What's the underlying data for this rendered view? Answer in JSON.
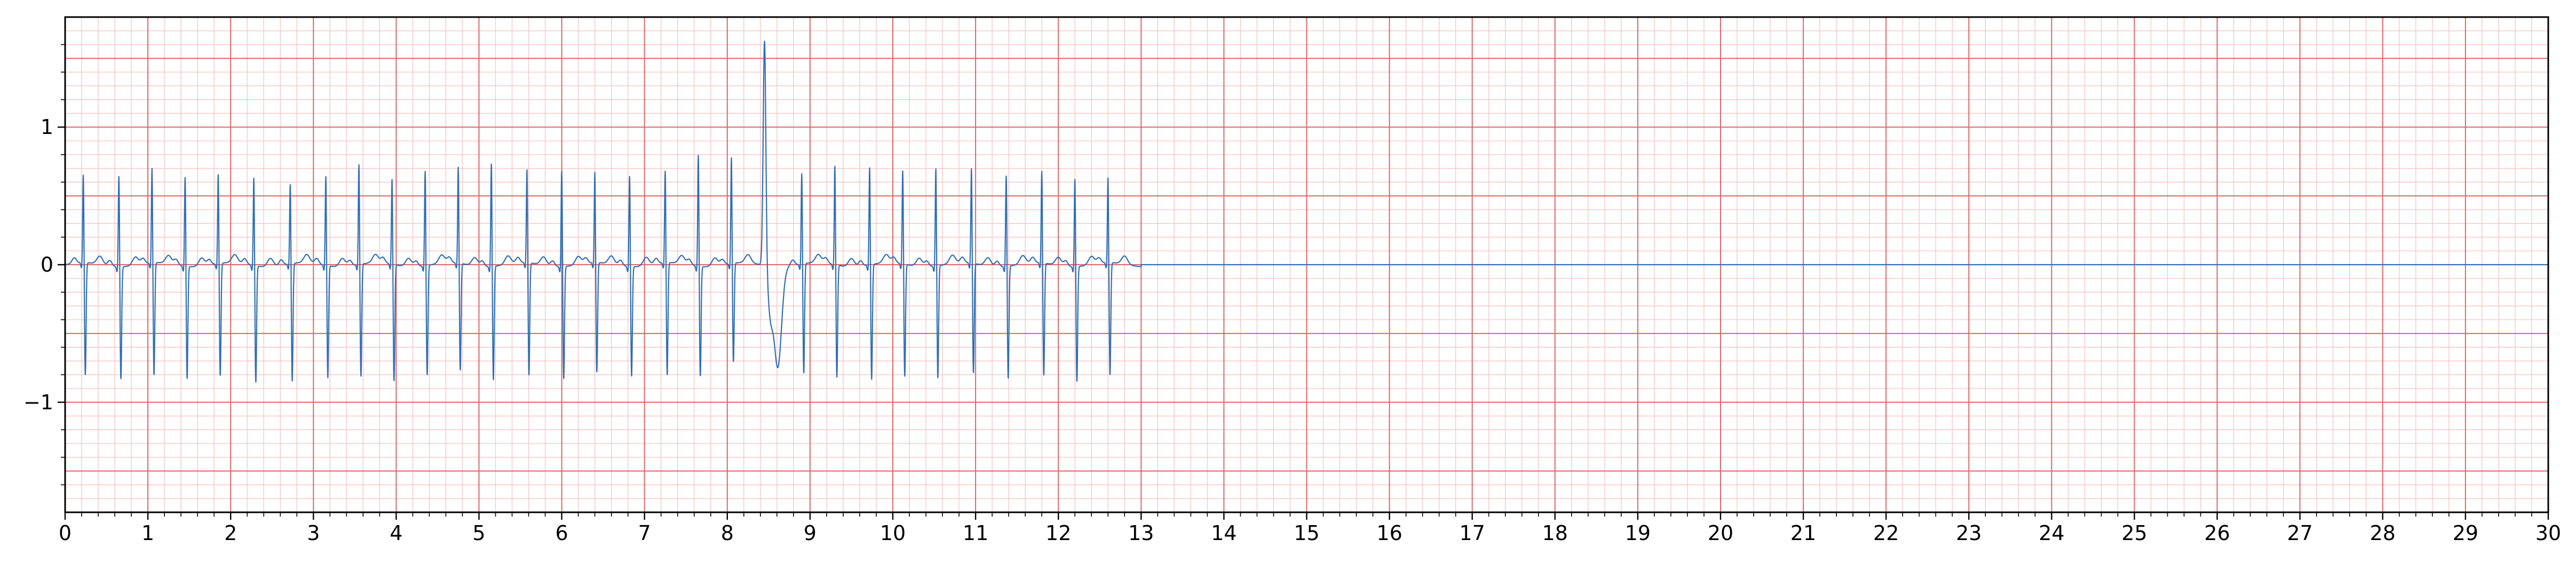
{
  "chart_data": {
    "type": "line",
    "title": "",
    "xlabel": "",
    "ylabel": "",
    "xlim": [
      0,
      30
    ],
    "ylim": [
      -1.8,
      1.8
    ],
    "x_ticks": [
      0,
      1,
      2,
      3,
      4,
      5,
      6,
      7,
      8,
      9,
      10,
      11,
      12,
      13,
      14,
      15,
      16,
      17,
      18,
      19,
      20,
      21,
      22,
      23,
      24,
      25,
      26,
      27,
      28,
      29,
      30
    ],
    "y_ticks": [
      -1,
      0,
      1
    ],
    "y_tick_labels": [
      "−1",
      "0",
      "1"
    ],
    "grid": {
      "major_x_step": 1,
      "minor_x_step": 0.2,
      "major_y_step": 0.5,
      "minor_y_step": 0.1,
      "major_color": "#e06666",
      "minor_color": "#f7c3c3"
    },
    "series": [
      {
        "line_color": "#2f6fb5",
        "signal_end": 13.0,
        "flat_value": 0.0,
        "beats": [
          {
            "t": 0.22,
            "r": 0.66,
            "s": -0.82
          },
          {
            "t": 0.65,
            "r": 0.68,
            "s": -0.82
          },
          {
            "t": 1.05,
            "r": 0.71,
            "s": -0.82
          },
          {
            "t": 1.45,
            "r": 0.67,
            "s": -0.82
          },
          {
            "t": 1.85,
            "r": 0.67,
            "s": -0.82
          },
          {
            "t": 2.28,
            "r": 0.66,
            "s": -0.85
          },
          {
            "t": 2.72,
            "r": 0.6,
            "s": -0.86
          },
          {
            "t": 3.15,
            "r": 0.67,
            "s": -0.82
          },
          {
            "t": 3.55,
            "r": 0.75,
            "s": -0.82
          },
          {
            "t": 3.95,
            "r": 0.64,
            "s": -0.85
          },
          {
            "t": 4.35,
            "r": 0.71,
            "s": -0.8
          },
          {
            "t": 4.75,
            "r": 0.72,
            "s": -0.78
          },
          {
            "t": 5.15,
            "r": 0.77,
            "s": -0.83
          },
          {
            "t": 5.58,
            "r": 0.7,
            "s": -0.82
          },
          {
            "t": 6.0,
            "r": 0.72,
            "s": -0.82
          },
          {
            "t": 6.4,
            "r": 0.68,
            "s": -0.8
          },
          {
            "t": 6.82,
            "r": 0.68,
            "s": -0.8
          },
          {
            "t": 7.25,
            "r": 0.69,
            "s": -0.82
          },
          {
            "t": 7.65,
            "r": 0.83,
            "s": -0.8
          },
          {
            "t": 8.05,
            "r": 0.79,
            "s": -0.72
          },
          {
            "t": 8.9,
            "r": 0.68,
            "s": -0.8
          },
          {
            "t": 9.3,
            "r": 0.74,
            "s": -0.82
          },
          {
            "t": 9.72,
            "r": 0.73,
            "s": -0.84
          },
          {
            "t": 10.12,
            "r": 0.7,
            "s": -0.82
          },
          {
            "t": 10.52,
            "r": 0.73,
            "s": -0.82
          },
          {
            "t": 10.95,
            "r": 0.71,
            "s": -0.8
          },
          {
            "t": 11.37,
            "r": 0.68,
            "s": -0.82
          },
          {
            "t": 11.8,
            "r": 0.69,
            "s": -0.82
          },
          {
            "t": 12.2,
            "r": 0.66,
            "s": -0.84
          },
          {
            "t": 12.6,
            "r": 0.64,
            "s": -0.82
          }
        ],
        "ectopic_beats": [
          {
            "t": 8.45,
            "r": 1.65,
            "s": -0.73
          }
        ]
      }
    ]
  }
}
